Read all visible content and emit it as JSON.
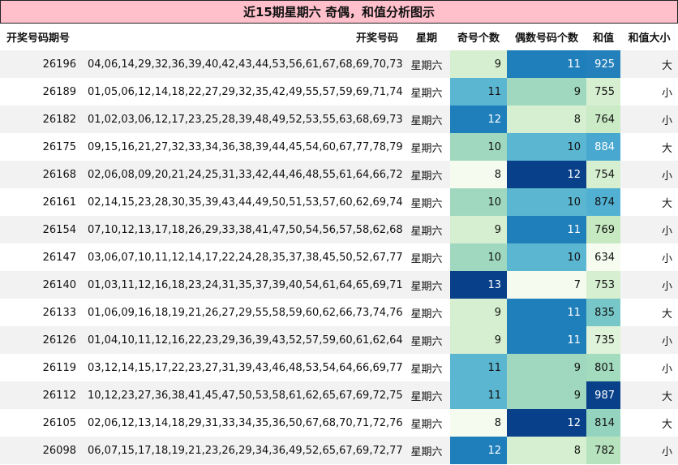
{
  "title": "近15期星期六 奇偶，和值分析图示",
  "headers": [
    "开奖号码期号",
    "开奖号码",
    "星期",
    "奇号个数",
    "偶数号码个数",
    "和值",
    "和值大小"
  ],
  "rows": [
    {
      "issue": "26196",
      "numbers": "04,06,14,29,32,36,39,40,42,43,44,53,56,61,67,68,69,70,73,79",
      "weekday": "星期六",
      "odd": 9,
      "even": 11,
      "sum": 925,
      "size": "大"
    },
    {
      "issue": "26189",
      "numbers": "01,05,06,12,14,18,22,27,29,32,35,42,49,55,57,59,69,71,74,78",
      "weekday": "星期六",
      "odd": 11,
      "even": 9,
      "sum": 755,
      "size": "小"
    },
    {
      "issue": "26182",
      "numbers": "01,02,03,06,12,17,23,25,28,39,48,49,52,53,55,63,68,69,73,78",
      "weekday": "星期六",
      "odd": 12,
      "even": 8,
      "sum": 764,
      "size": "小"
    },
    {
      "issue": "26175",
      "numbers": "09,15,16,21,27,32,33,34,36,38,39,44,45,54,60,67,77,78,79,80",
      "weekday": "星期六",
      "odd": 10,
      "even": 10,
      "sum": 884,
      "size": "大"
    },
    {
      "issue": "26168",
      "numbers": "02,06,08,09,20,21,24,25,31,33,42,44,46,48,55,61,64,66,72,77",
      "weekday": "星期六",
      "odd": 8,
      "even": 12,
      "sum": 754,
      "size": "小"
    },
    {
      "issue": "26161",
      "numbers": "02,14,15,23,28,30,35,39,43,44,49,50,51,53,57,60,62,69,74,76",
      "weekday": "星期六",
      "odd": 10,
      "even": 10,
      "sum": 874,
      "size": "大"
    },
    {
      "issue": "26154",
      "numbers": "07,10,12,13,17,18,26,29,33,38,41,47,50,54,56,57,58,62,68,73",
      "weekday": "星期六",
      "odd": 9,
      "even": 11,
      "sum": 769,
      "size": "小"
    },
    {
      "issue": "26147",
      "numbers": "03,06,07,10,11,12,14,17,22,24,28,35,37,38,45,50,52,67,77,79",
      "weekday": "星期六",
      "odd": 10,
      "even": 10,
      "sum": 634,
      "size": "小"
    },
    {
      "issue": "26140",
      "numbers": "01,03,11,12,16,18,23,24,31,35,37,39,40,54,61,64,65,69,71,79",
      "weekday": "星期六",
      "odd": 13,
      "even": 7,
      "sum": 753,
      "size": "小"
    },
    {
      "issue": "26133",
      "numbers": "01,06,09,16,18,19,21,26,27,29,55,58,59,60,62,66,73,74,76,80",
      "weekday": "星期六",
      "odd": 9,
      "even": 11,
      "sum": 835,
      "size": "大"
    },
    {
      "issue": "26126",
      "numbers": "01,04,10,11,12,16,22,23,29,36,39,43,52,57,59,60,61,62,64,74",
      "weekday": "星期六",
      "odd": 9,
      "even": 11,
      "sum": 735,
      "size": "小"
    },
    {
      "issue": "26119",
      "numbers": "03,12,14,15,17,22,23,27,31,39,43,46,48,53,54,64,66,69,77,78",
      "weekday": "星期六",
      "odd": 11,
      "even": 9,
      "sum": 801,
      "size": "小"
    },
    {
      "issue": "26112",
      "numbers": "10,12,23,27,36,38,41,45,47,50,53,58,61,62,65,67,69,72,75,76",
      "weekday": "星期六",
      "odd": 11,
      "even": 9,
      "sum": 987,
      "size": "大"
    },
    {
      "issue": "26105",
      "numbers": "02,06,12,13,14,18,29,31,33,34,35,36,50,67,68,70,71,72,76,77",
      "weekday": "星期六",
      "odd": 8,
      "even": 12,
      "sum": 814,
      "size": "大"
    },
    {
      "issue": "26098",
      "numbers": "06,07,15,17,18,19,21,23,26,29,34,36,49,52,65,67,69,72,77,80",
      "weekday": "星期六",
      "odd": 12,
      "even": 8,
      "sum": 782,
      "size": "小"
    }
  ],
  "colors": {
    "title_bg": "#ffc0cb",
    "odd_scale": {
      "8": "#f5fbef",
      "9": "#d6efd0",
      "10": "#9fd8bf",
      "11": "#5bb7d1",
      "12": "#1f7fbb",
      "13": "#08408a"
    },
    "even_scale": {
      "7": "#f5fbef",
      "8": "#d6efd0",
      "9": "#9fd8bf",
      "10": "#5bb7d1",
      "11": "#1f7fbb",
      "12": "#08408a"
    },
    "sum_scale": {
      "634": "#f7fcf0",
      "735": "#dff2da",
      "753": "#d6efd0",
      "754": "#d6efd0",
      "755": "#d6efd0",
      "764": "#cbebc6",
      "769": "#c6e9c2",
      "782": "#b6e3bd",
      "801": "#a3dbbe",
      "814": "#94d4bf",
      "835": "#78c7c8",
      "874": "#52b1d3",
      "884": "#48a8d0",
      "925": "#2380bb",
      "987": "#08408a"
    }
  }
}
